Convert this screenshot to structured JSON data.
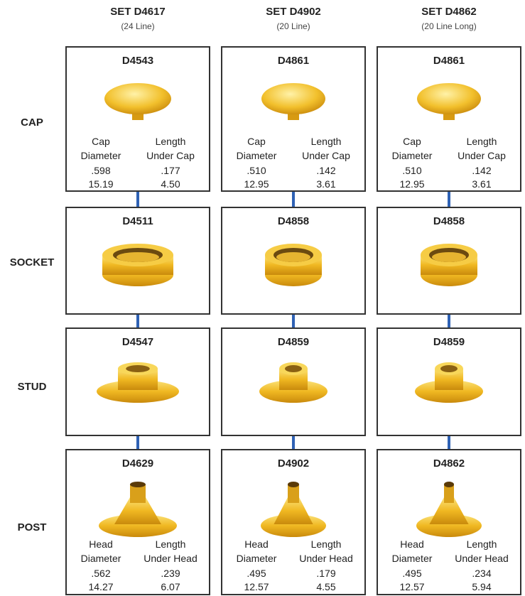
{
  "sets": [
    {
      "title": "SET D4617",
      "subtitle": "(24 Line)"
    },
    {
      "title": "SET D4902",
      "subtitle": "(20 Line)"
    },
    {
      "title": "SET D4862",
      "subtitle": "(20 Line Long)"
    }
  ],
  "rows": [
    {
      "label": "CAP",
      "cells": [
        {
          "part": "D4543",
          "specs": [
            {
              "label": [
                "Cap",
                "Diameter"
              ],
              "inch": ".598",
              "mm": "15.19"
            },
            {
              "label": [
                "Length",
                "Under Cap"
              ],
              "inch": ".177",
              "mm": "4.50"
            }
          ]
        },
        {
          "part": "D4861",
          "specs": [
            {
              "label": [
                "Cap",
                "Diameter"
              ],
              "inch": ".510",
              "mm": "12.95"
            },
            {
              "label": [
                "Length",
                "Under Cap"
              ],
              "inch": ".142",
              "mm": "3.61"
            }
          ]
        },
        {
          "part": "D4861",
          "specs": [
            {
              "label": [
                "Cap",
                "Diameter"
              ],
              "inch": ".510",
              "mm": "12.95"
            },
            {
              "label": [
                "Length",
                "Under Cap"
              ],
              "inch": ".142",
              "mm": "3.61"
            }
          ]
        }
      ]
    },
    {
      "label": "SOCKET",
      "cells": [
        {
          "part": "D4511"
        },
        {
          "part": "D4858"
        },
        {
          "part": "D4858"
        }
      ]
    },
    {
      "label": "STUD",
      "cells": [
        {
          "part": "D4547"
        },
        {
          "part": "D4859"
        },
        {
          "part": "D4859"
        }
      ]
    },
    {
      "label": "POST",
      "cells": [
        {
          "part": "D4629",
          "specs": [
            {
              "label": [
                "Head",
                "Diameter"
              ],
              "inch": ".562",
              "mm": "14.27"
            },
            {
              "label": [
                "Length",
                "Under Head"
              ],
              "inch": ".239",
              "mm": "6.07"
            }
          ]
        },
        {
          "part": "D4902",
          "specs": [
            {
              "label": [
                "Head",
                "Diameter"
              ],
              "inch": ".495",
              "mm": "12.57"
            },
            {
              "label": [
                "Length",
                "Under Head"
              ],
              "inch": ".179",
              "mm": "4.55"
            }
          ]
        },
        {
          "part": "D4862",
          "specs": [
            {
              "label": [
                "Head",
                "Diameter"
              ],
              "inch": ".495",
              "mm": "12.57"
            },
            {
              "label": [
                "Length",
                "Under Head"
              ],
              "inch": ".234",
              "mm": "5.94"
            }
          ]
        }
      ]
    }
  ]
}
